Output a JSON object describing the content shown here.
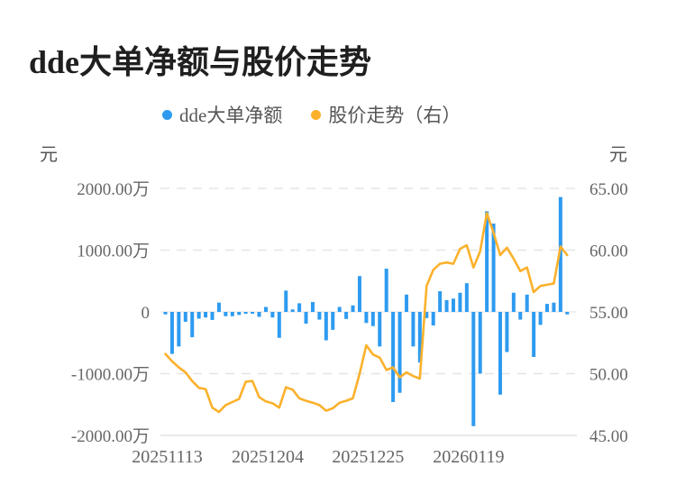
{
  "title": "dde大单净额与股价走势",
  "legend": [
    {
      "label": "dde大单净额",
      "color": "#2E9BF0",
      "type": "bar"
    },
    {
      "label": "股价走势（右）",
      "color": "#FBB12C",
      "type": "line"
    }
  ],
  "axes": {
    "left_unit": "元",
    "right_unit": "元",
    "left_ticks": [
      "2000.00万",
      "1000.00万",
      "0",
      "-1000.00万",
      "-2000.00万"
    ],
    "right_ticks": [
      "65.00",
      "60.00",
      "55.00",
      "50.00",
      "45.00"
    ],
    "x_ticks": [
      {
        "label": "20251113",
        "index": 0
      },
      {
        "label": "20251204",
        "index": 15
      },
      {
        "label": "20251225",
        "index": 30
      },
      {
        "label": "20260119",
        "index": 45
      }
    ]
  },
  "colors": {
    "bar": "#2E9BF0",
    "line": "#FBB12C",
    "grid_dashed": "#e5e5e5",
    "grid_zero": "#ececec",
    "grid_bottom": "#e2e2e2",
    "axis_text": "#666666",
    "title_text": "#1f1f1f"
  },
  "chart_data": {
    "type": "bar+line",
    "title": "dde大单净额与股价走势",
    "bar_series_name": "dde大单净额",
    "bar_unit": "万元",
    "bar_axis_range": [
      -2000,
      2000
    ],
    "line_series_name": "股价走势（右）",
    "line_unit": "元",
    "line_axis_range": [
      45,
      65
    ],
    "x_tick_labels": [
      "20251113",
      "20251204",
      "20251225",
      "20260119"
    ],
    "x_tick_indices": [
      0,
      15,
      30,
      45
    ],
    "grid": "horizontal-dashed",
    "legend_position": "top-center",
    "bars_wan": [
      -40,
      -680,
      -560,
      -160,
      -410,
      -110,
      -90,
      -130,
      150,
      -70,
      -70,
      -50,
      -30,
      -30,
      -80,
      80,
      -90,
      -420,
      345,
      40,
      140,
      -190,
      160,
      -125,
      -460,
      -290,
      80,
      -115,
      105,
      580,
      -180,
      -230,
      -560,
      700,
      -1460,
      -1310,
      280,
      -560,
      -820,
      -100,
      -220,
      335,
      190,
      215,
      310,
      465,
      -1850,
      -1000,
      1630,
      1430,
      -1340,
      -650,
      310,
      -125,
      280,
      -730,
      -210,
      130,
      150,
      1860,
      -40
    ],
    "price_line": [
      51.6,
      51.0,
      50.5,
      50.1,
      49.4,
      48.85,
      48.75,
      47.25,
      46.9,
      47.45,
      47.7,
      47.95,
      49.35,
      49.4,
      48.1,
      47.75,
      47.6,
      47.25,
      48.9,
      48.7,
      48.0,
      47.8,
      47.65,
      47.45,
      47.0,
      47.2,
      47.65,
      47.8,
      48.0,
      50.0,
      52.3,
      51.55,
      51.3,
      50.3,
      50.5,
      49.7,
      50.1,
      49.8,
      49.6,
      57.1,
      58.4,
      58.9,
      59.0,
      58.9,
      60.1,
      60.4,
      58.6,
      59.9,
      63.0,
      61.4,
      59.6,
      60.2,
      59.3,
      58.3,
      58.6,
      56.6,
      57.1,
      57.2,
      57.3,
      60.3,
      59.6
    ]
  }
}
